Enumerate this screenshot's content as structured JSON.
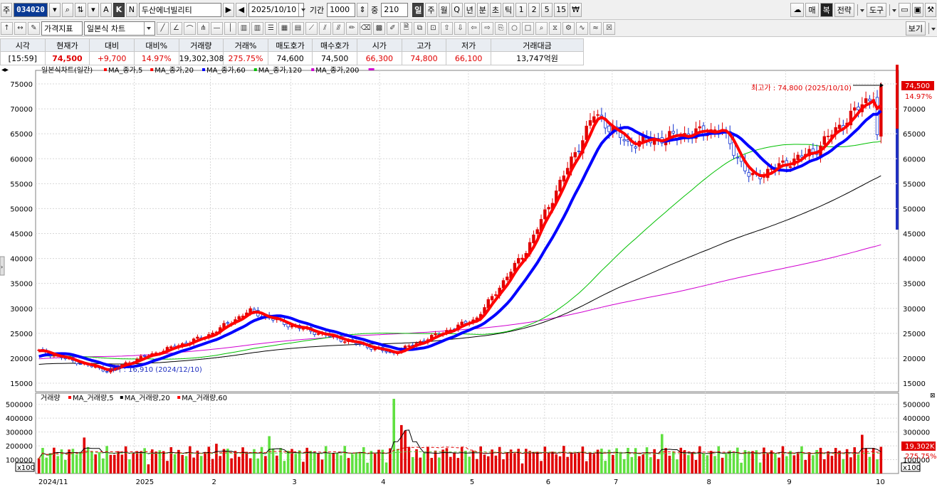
{
  "toolbar": {
    "type_prefix": "주",
    "stock_code": "034020",
    "stock_name": "두산에너빌리티",
    "date": "2025/10/10",
    "period_label": "기간",
    "period_value": "1000",
    "mid_label": "중",
    "mid_value": "210",
    "period_buttons": [
      "일",
      "주",
      "월",
      "Q",
      "년",
      "분",
      "초",
      "틱",
      "1",
      "2",
      "5",
      "15",
      "₩"
    ],
    "active_period": "일",
    "mode_buttons": [
      "A",
      "K",
      "N"
    ],
    "right_buttons": [
      "매",
      "복",
      "전략",
      "도구"
    ],
    "indicator_label": "가격지표",
    "chart_type": "일본식 차트",
    "view_button": "보기"
  },
  "quote": {
    "headers": [
      "시각",
      "현재가",
      "대비",
      "대비%",
      "거래량",
      "거래%",
      "매도호가",
      "매수호가",
      "시가",
      "고가",
      "저가",
      "거래대금"
    ],
    "values": [
      "[15:59]",
      "74,500",
      "+9,700",
      "14.97%",
      "19,302,308",
      "275.75%",
      "74,600",
      "74,500",
      "66,300",
      "74,800",
      "66,100",
      "13,747억원"
    ],
    "colors": [
      "#000000",
      "#e00000",
      "#e00000",
      "#e00000",
      "#000000",
      "#e00000",
      "#000000",
      "#000000",
      "#e00000",
      "#e00000",
      "#e00000",
      "#000000"
    ]
  },
  "chart": {
    "legend_title": "일본식차트(일간)",
    "legend_items": [
      {
        "label": "MA_종가,5",
        "color": "#ff0000"
      },
      {
        "label": "MA_종가,20",
        "color": "#ff0000"
      },
      {
        "label": "MA_종가,60",
        "color": "#0000ff"
      },
      {
        "label": "MA_종가,120",
        "color": "#00c000"
      },
      {
        "label": "MA_종가,200",
        "color": "#d000d0"
      }
    ],
    "price_ticks": [
      "75000",
      "70000",
      "65000",
      "60000",
      "55000",
      "50000",
      "45000",
      "40000",
      "35000",
      "30000",
      "25000",
      "20000",
      "15000"
    ],
    "high_annotation": "최고가 : 74,800 (2025/10/10)",
    "low_annotation": "저가 : 16,910 (2024/12/10)",
    "last_price_tag": "74,500",
    "last_pct_tag": "14.97%",
    "volume_legend_title": "거래량",
    "volume_legend_items": [
      {
        "label": "MA_거래량,5",
        "color": "#ff0000"
      },
      {
        "label": "MA_거래량,20",
        "color": "#000000"
      },
      {
        "label": "MA_거래량,60",
        "color": "#ff0000"
      }
    ],
    "volume_ticks": [
      "500000",
      "400000",
      "300000",
      "200000",
      "100000"
    ],
    "volume_unit": "x100",
    "volume_tag": "19,302K",
    "volume_pct_tag": "275.75%",
    "x_labels": [
      "2024/11",
      "2025",
      "2",
      "3",
      "4",
      "5",
      "6",
      "7",
      "8",
      "9",
      "10"
    ]
  },
  "chart_data": {
    "type": "candlestick",
    "title": "일본식차트(일간)",
    "y_range": [
      15000,
      76000
    ],
    "volume_range": [
      0,
      550000
    ],
    "approx_closing_path": [
      {
        "x": "2024/11",
        "y": 21500
      },
      {
        "x": "2024/12",
        "y": 17500
      },
      {
        "x": "2025/01",
        "y": 20000
      },
      {
        "x": "2025/02",
        "y": 24500
      },
      {
        "x": "2025/02 late",
        "y": 29500
      },
      {
        "x": "2025/03",
        "y": 26500
      },
      {
        "x": "2025/04",
        "y": 21000
      },
      {
        "x": "2025/05",
        "y": 28000
      },
      {
        "x": "2025/06",
        "y": 42000
      },
      {
        "x": "2025/06 late",
        "y": 69000
      },
      {
        "x": "2025/07",
        "y": 63000
      },
      {
        "x": "2025/08",
        "y": 66000
      },
      {
        "x": "2025/08 late",
        "y": 56000
      },
      {
        "x": "2025/09",
        "y": 61500
      },
      {
        "x": "2025/10/10",
        "y": 74500
      }
    ],
    "high": 74800,
    "low": 16910
  }
}
